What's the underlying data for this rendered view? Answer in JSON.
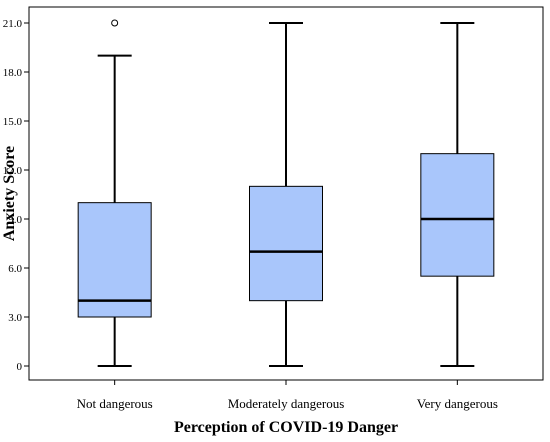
{
  "colors": {
    "box_fill": "#a9c6fb",
    "stroke": "#000000",
    "frame": "#000000",
    "background": "#ffffff"
  },
  "chart_data": {
    "type": "boxplot",
    "title": "",
    "xlabel": "Perception of COVID-19 Danger",
    "ylabel": "Anxiety Score",
    "ylim": [
      0,
      21
    ],
    "yticks": [
      0,
      3,
      6,
      9,
      12,
      15,
      18,
      21
    ],
    "ytick_labels": [
      "0",
      "3.0",
      "6.0",
      "9.0",
      "12.0",
      "15.0",
      "18.0",
      "21.0"
    ],
    "grid": false,
    "legend": "none",
    "categories": [
      "Not dangerous",
      "Moderately dangerous",
      "Very dangerous"
    ],
    "boxes": [
      {
        "category": "Not dangerous",
        "min": 0,
        "q1": 3,
        "median": 4,
        "q3": 10,
        "max": 19,
        "outliers": [
          21
        ]
      },
      {
        "category": "Moderately dangerous",
        "min": 0,
        "q1": 4,
        "median": 7,
        "q3": 11,
        "max": 21,
        "outliers": []
      },
      {
        "category": "Very dangerous",
        "min": 0,
        "q1": 5.5,
        "median": 9,
        "q3": 13,
        "max": 21,
        "outliers": []
      }
    ]
  }
}
